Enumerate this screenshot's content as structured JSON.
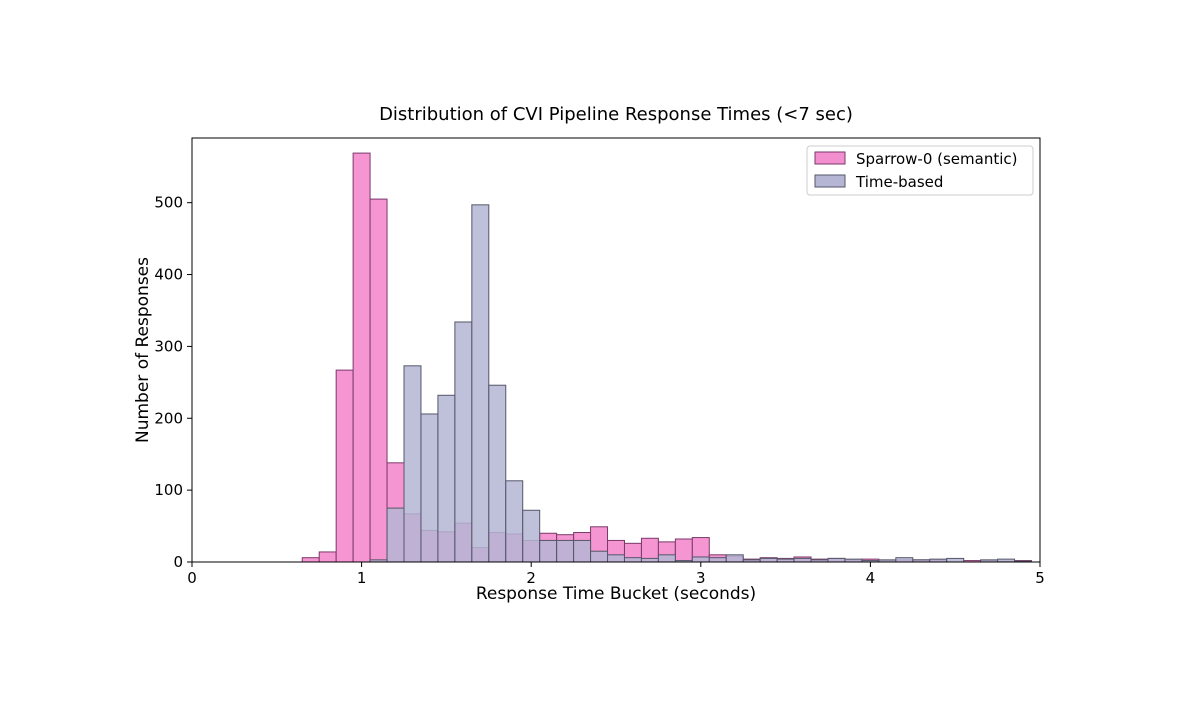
{
  "chart_data": {
    "type": "bar",
    "title": "Distribution of CVI Pipeline Response Times (<7 sec)",
    "xlabel": "Response Time Bucket (seconds)",
    "ylabel": "Number of Responses",
    "xlim": [
      0,
      5
    ],
    "ylim": [
      0,
      590
    ],
    "xticks": [
      0,
      1,
      2,
      3,
      4,
      5
    ],
    "yticks": [
      0,
      100,
      200,
      300,
      400,
      500
    ],
    "bin_width": 0.1,
    "bin_starts": [
      0.65,
      0.75,
      0.85,
      0.95,
      1.05,
      1.15,
      1.25,
      1.35,
      1.45,
      1.55,
      1.65,
      1.75,
      1.85,
      1.95,
      2.05,
      2.15,
      2.25,
      2.35,
      2.45,
      2.55,
      2.65,
      2.75,
      2.85,
      2.95,
      3.05,
      3.15,
      3.25,
      3.35,
      3.45,
      3.55,
      3.65,
      3.75,
      3.85,
      3.95,
      4.05,
      4.15,
      4.25,
      4.35,
      4.45,
      4.55,
      4.65,
      4.75,
      4.85
    ],
    "legend_location": "upper right",
    "series": [
      {
        "name": "Sparrow-0 (semantic)",
        "color": "#f48fcf",
        "edge_color": "#7a3a6a",
        "values": [
          6,
          14,
          267,
          569,
          505,
          138,
          67,
          44,
          42,
          54,
          20,
          41,
          39,
          30,
          40,
          38,
          41,
          49,
          30,
          26,
          33,
          28,
          32,
          34,
          10,
          8,
          4,
          6,
          5,
          7,
          4,
          5,
          3,
          4,
          2,
          3,
          3,
          3,
          0,
          2,
          2,
          1,
          2
        ]
      },
      {
        "name": "Time-based",
        "color": "#b4b6d4",
        "edge_color": "#55566a",
        "values": [
          0,
          0,
          0,
          0,
          3,
          75,
          273,
          206,
          232,
          334,
          497,
          246,
          113,
          72,
          30,
          30,
          30,
          15,
          10,
          6,
          5,
          10,
          2,
          7,
          6,
          10,
          3,
          5,
          4,
          5,
          3,
          5,
          4,
          2,
          3,
          6,
          3,
          4,
          5,
          0,
          3,
          4,
          1
        ]
      }
    ]
  }
}
